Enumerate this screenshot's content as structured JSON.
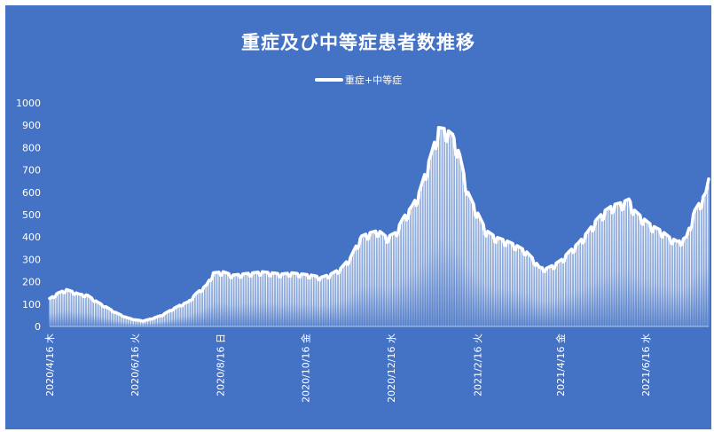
{
  "chart_data": {
    "type": "bar",
    "title": "重症及び中等症患者数推移",
    "series": [
      {
        "name": "重症+中等症"
      }
    ],
    "ylim": [
      0,
      1000
    ],
    "yticks": [
      "0",
      "100",
      "200",
      "300",
      "400",
      "500",
      "600",
      "700",
      "800",
      "900",
      "1000"
    ],
    "xticks": [
      "2020/4/16 木",
      "2020/6/16 火",
      "2020/8/16 日",
      "2020/10/16 金",
      "2020/12/16 水",
      "2021/2/16 火",
      "2021/4/16 金",
      "2021/6/16 水"
    ],
    "x_start": "2020-04-16",
    "x_end": "2021-07-31",
    "keypoints": [
      [
        "2020-04-16",
        125
      ],
      [
        "2020-04-22",
        150
      ],
      [
        "2020-04-28",
        165
      ],
      [
        "2020-05-03",
        155
      ],
      [
        "2020-05-07",
        145
      ],
      [
        "2020-05-13",
        140
      ],
      [
        "2020-05-20",
        110
      ],
      [
        "2020-05-27",
        85
      ],
      [
        "2020-06-03",
        60
      ],
      [
        "2020-06-10",
        40
      ],
      [
        "2020-06-16",
        30
      ],
      [
        "2020-06-22",
        25
      ],
      [
        "2020-06-28",
        35
      ],
      [
        "2020-07-05",
        50
      ],
      [
        "2020-07-12",
        75
      ],
      [
        "2020-07-18",
        95
      ],
      [
        "2020-07-24",
        110
      ],
      [
        "2020-07-30",
        150
      ],
      [
        "2020-08-06",
        185
      ],
      [
        "2020-08-11",
        240
      ],
      [
        "2020-08-18",
        245
      ],
      [
        "2020-08-25",
        230
      ],
      [
        "2020-09-01",
        235
      ],
      [
        "2020-09-08",
        240
      ],
      [
        "2020-09-15",
        245
      ],
      [
        "2020-09-22",
        240
      ],
      [
        "2020-09-29",
        235
      ],
      [
        "2020-10-06",
        240
      ],
      [
        "2020-10-13",
        235
      ],
      [
        "2020-10-20",
        230
      ],
      [
        "2020-10-27",
        220
      ],
      [
        "2020-11-03",
        235
      ],
      [
        "2020-11-10",
        260
      ],
      [
        "2020-11-17",
        310
      ],
      [
        "2020-11-21",
        360
      ],
      [
        "2020-11-25",
        405
      ],
      [
        "2020-12-01",
        420
      ],
      [
        "2020-12-07",
        430
      ],
      [
        "2020-12-13",
        400
      ],
      [
        "2020-12-19",
        420
      ],
      [
        "2020-12-25",
        490
      ],
      [
        "2020-12-31",
        540
      ],
      [
        "2021-01-05",
        600
      ],
      [
        "2021-01-09",
        680
      ],
      [
        "2021-01-14",
        780
      ],
      [
        "2021-01-19",
        890
      ],
      [
        "2021-01-24",
        885
      ],
      [
        "2021-01-29",
        860
      ],
      [
        "2021-02-03",
        770
      ],
      [
        "2021-02-09",
        600
      ],
      [
        "2021-02-15",
        520
      ],
      [
        "2021-02-22",
        430
      ],
      [
        "2021-03-01",
        400
      ],
      [
        "2021-03-08",
        385
      ],
      [
        "2021-03-15",
        365
      ],
      [
        "2021-03-22",
        340
      ],
      [
        "2021-03-28",
        300
      ],
      [
        "2021-04-01",
        265
      ],
      [
        "2021-04-06",
        260
      ],
      [
        "2021-04-11",
        275
      ],
      [
        "2021-04-17",
        300
      ],
      [
        "2021-04-23",
        340
      ],
      [
        "2021-04-29",
        375
      ],
      [
        "2021-05-05",
        420
      ],
      [
        "2021-05-12",
        480
      ],
      [
        "2021-05-18",
        520
      ],
      [
        "2021-05-24",
        545
      ],
      [
        "2021-05-30",
        555
      ],
      [
        "2021-06-04",
        570
      ],
      [
        "2021-06-08",
        520
      ],
      [
        "2021-06-15",
        480
      ],
      [
        "2021-06-21",
        450
      ],
      [
        "2021-06-27",
        430
      ],
      [
        "2021-07-03",
        400
      ],
      [
        "2021-07-09",
        380
      ],
      [
        "2021-07-15",
        400
      ],
      [
        "2021-07-21",
        520
      ],
      [
        "2021-07-26",
        570
      ],
      [
        "2021-07-29",
        600
      ],
      [
        "2021-07-31",
        660
      ]
    ],
    "grid": false,
    "legend_position": "top-center",
    "colors": {
      "background": "#4472c4",
      "series": "#ffffff",
      "text": "#ffffff"
    }
  }
}
